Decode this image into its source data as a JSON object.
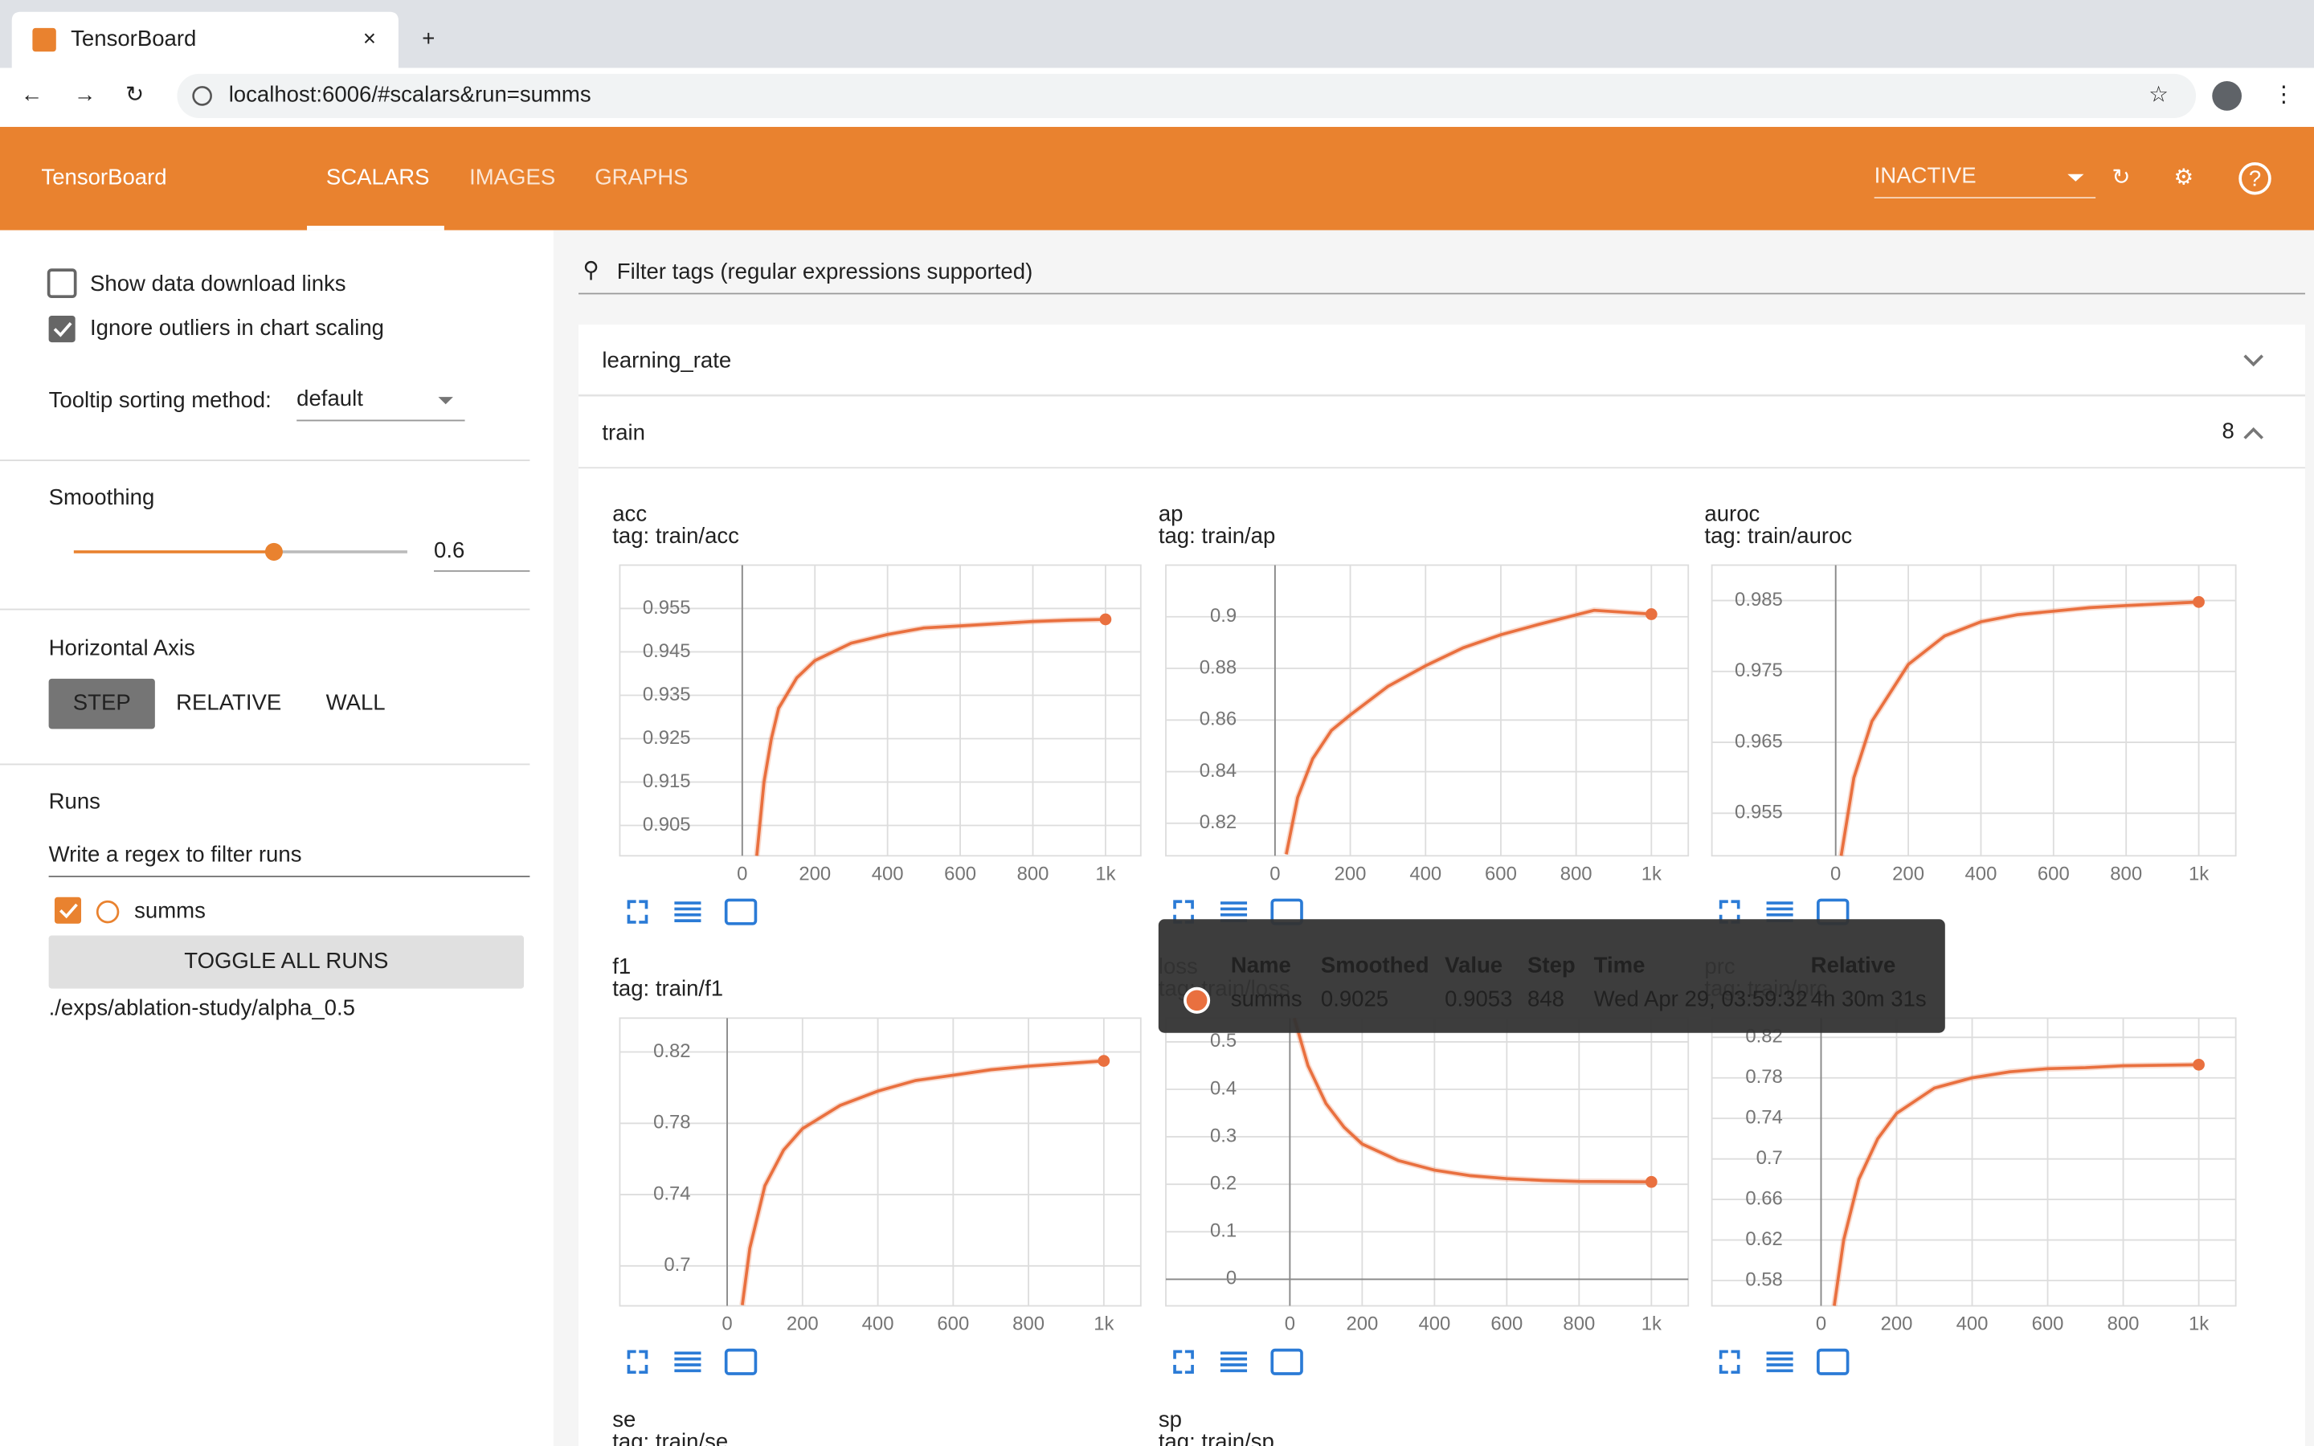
{
  "browser": {
    "tab_title": "TensorBoard",
    "url": "localhost:6006/#scalars&run=summs"
  },
  "header": {
    "title": "TensorBoard",
    "tabs": [
      "SCALARS",
      "IMAGES",
      "GRAPHS"
    ],
    "status": "INACTIVE"
  },
  "sidebar": {
    "show_download_links": "Show data download links",
    "ignore_outliers": "Ignore outliers in chart scaling",
    "tooltip_sorting_label": "Tooltip sorting method:",
    "tooltip_sorting_value": "default",
    "smoothing_label": "Smoothing",
    "smoothing": 0.6,
    "horizontal_axis_label": "Horizontal Axis",
    "horizontal_axis_options": [
      "STEP",
      "RELATIVE",
      "WALL"
    ],
    "runs_label": "Runs",
    "runs_filter_placeholder": "Write a regex to filter runs",
    "run_name": "summs",
    "toggle_all": "TOGGLE ALL RUNS",
    "run_path": "./exps/ablation-study/alpha_0.5"
  },
  "filter_placeholder": "Filter tags (regular expressions supported)",
  "groups": [
    {
      "name": "learning_rate"
    },
    {
      "name": "train",
      "count": 8
    }
  ],
  "charts": [
    {
      "title": "acc",
      "tag": "tag: train/acc",
      "xlim": [
        -337,
        1097
      ],
      "ylim": [
        0.898,
        0.965
      ],
      "xticks": [
        0,
        200,
        400,
        600,
        800,
        {
          "value": 1000,
          "label": "1k"
        }
      ],
      "yticks": [
        0.905,
        0.915,
        0.925,
        0.935,
        0.945,
        0.955
      ],
      "x": [
        40,
        60,
        80,
        100,
        150,
        200,
        300,
        400,
        500,
        600,
        700,
        800,
        900,
        1000
      ],
      "y": [
        0.898,
        0.915,
        0.925,
        0.932,
        0.939,
        0.943,
        0.947,
        0.949,
        0.9505,
        0.951,
        0.9515,
        0.952,
        0.9523,
        0.9525
      ]
    },
    {
      "title": "ap",
      "tag": "tag: train/ap",
      "xlim": [
        -290,
        1098
      ],
      "ylim": [
        0.8074,
        0.92
      ],
      "xticks": [
        0,
        200,
        400,
        600,
        800,
        {
          "value": 1000,
          "label": "1k"
        }
      ],
      "yticks": [
        0.82,
        0.84,
        0.86,
        0.88,
        0.9
      ],
      "x": [
        30,
        60,
        100,
        150,
        200,
        300,
        400,
        500,
        600,
        700,
        848,
        1000
      ],
      "y": [
        0.808,
        0.83,
        0.845,
        0.856,
        0.862,
        0.873,
        0.881,
        0.888,
        0.893,
        0.897,
        0.9025,
        0.901
      ]
    },
    {
      "title": "auroc",
      "tag": "tag: train/auroc",
      "xlim": [
        -341,
        1102
      ],
      "ylim": [
        0.949,
        0.99
      ],
      "xticks": [
        0,
        200,
        400,
        600,
        800,
        {
          "value": 1000,
          "label": "1k"
        }
      ],
      "yticks": [
        0.955,
        0.965,
        0.975,
        0.985
      ],
      "x": [
        15,
        50,
        100,
        150,
        200,
        300,
        400,
        500,
        600,
        700,
        800,
        1000
      ],
      "y": [
        0.949,
        0.96,
        0.968,
        0.972,
        0.976,
        0.98,
        0.982,
        0.983,
        0.9835,
        0.984,
        0.9843,
        0.9848
      ]
    },
    {
      "title": "f1",
      "tag": "tag: train/f1",
      "xlim": [
        -285,
        1098
      ],
      "ylim": [
        0.6776,
        0.839
      ],
      "xticks": [
        0,
        200,
        400,
        600,
        800,
        {
          "value": 1000,
          "label": "1k"
        }
      ],
      "yticks": [
        0.7,
        0.74,
        0.78,
        0.82
      ],
      "x": [
        40,
        60,
        100,
        150,
        200,
        300,
        400,
        500,
        600,
        700,
        800,
        1000
      ],
      "y": [
        0.678,
        0.71,
        0.745,
        0.765,
        0.777,
        0.79,
        0.798,
        0.804,
        0.807,
        0.81,
        0.812,
        0.815
      ]
    },
    {
      "title": "loss",
      "tag": "tag: train/loss",
      "xlim": [
        -343,
        1102
      ],
      "ylim": [
        -0.056,
        0.55
      ],
      "xticks": [
        0,
        200,
        400,
        600,
        800,
        {
          "value": 1000,
          "label": "1k"
        }
      ],
      "yticks": [
        0,
        0.1,
        0.2,
        0.3,
        0.4,
        0.5
      ],
      "x": [
        12,
        50,
        100,
        150,
        200,
        300,
        400,
        500,
        600,
        700,
        800,
        1000
      ],
      "y": [
        0.55,
        0.45,
        0.37,
        0.32,
        0.285,
        0.25,
        0.23,
        0.218,
        0.212,
        0.208,
        0.206,
        0.205
      ]
    },
    {
      "title": "prc",
      "tag": "tag: train/prc",
      "xlim": [
        -289,
        1098
      ],
      "ylim": [
        0.555,
        0.839
      ],
      "xticks": [
        0,
        200,
        400,
        600,
        800,
        {
          "value": 1000,
          "label": "1k"
        }
      ],
      "yticks": [
        0.58,
        0.62,
        0.66,
        0.7,
        0.74,
        0.78,
        0.82
      ],
      "x": [
        35,
        60,
        100,
        150,
        200,
        300,
        400,
        500,
        600,
        700,
        800,
        1000
      ],
      "y": [
        0.555,
        0.62,
        0.68,
        0.72,
        0.745,
        0.77,
        0.78,
        0.786,
        0.789,
        0.79,
        0.792,
        0.793
      ]
    }
  ],
  "partial_charts": [
    {
      "title": "se",
      "tag": "tag: train/se"
    },
    {
      "title": "sp",
      "tag": "tag: train/sp"
    }
  ],
  "tooltip": {
    "headers": [
      "Name",
      "Smoothed",
      "Value",
      "Step",
      "Time",
      "Relative"
    ],
    "row": [
      "summs",
      0.9025,
      0.9053,
      848,
      "Wed Apr 29, 03:59:32",
      "4h 30m 31s"
    ]
  }
}
